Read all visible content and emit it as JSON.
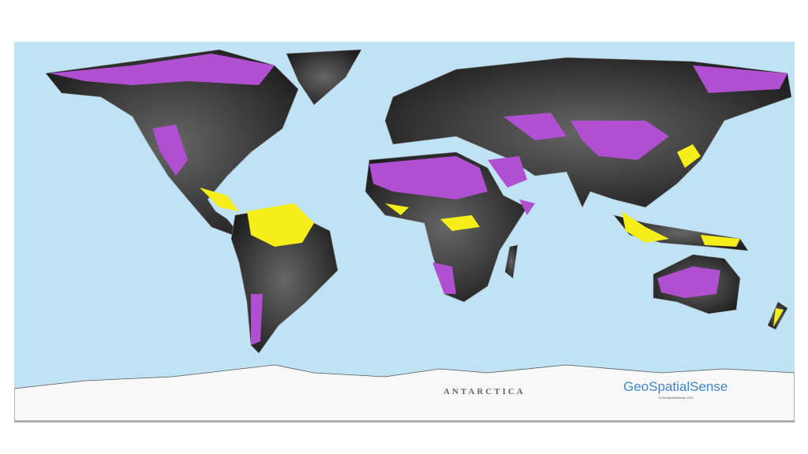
{
  "map": {
    "labels": {
      "antarctica": "ANTARCTICA"
    },
    "logo": {
      "text": "GeoSpatialSense",
      "copyright": "©GeoSpatialSense 2021"
    },
    "colors": {
      "ocean": "#bfe3f5",
      "land": "#2b2b2b",
      "region_a": "#b04fd0",
      "region_b": "#f5ee1a",
      "antarctica": "#f8f8f8"
    }
  }
}
